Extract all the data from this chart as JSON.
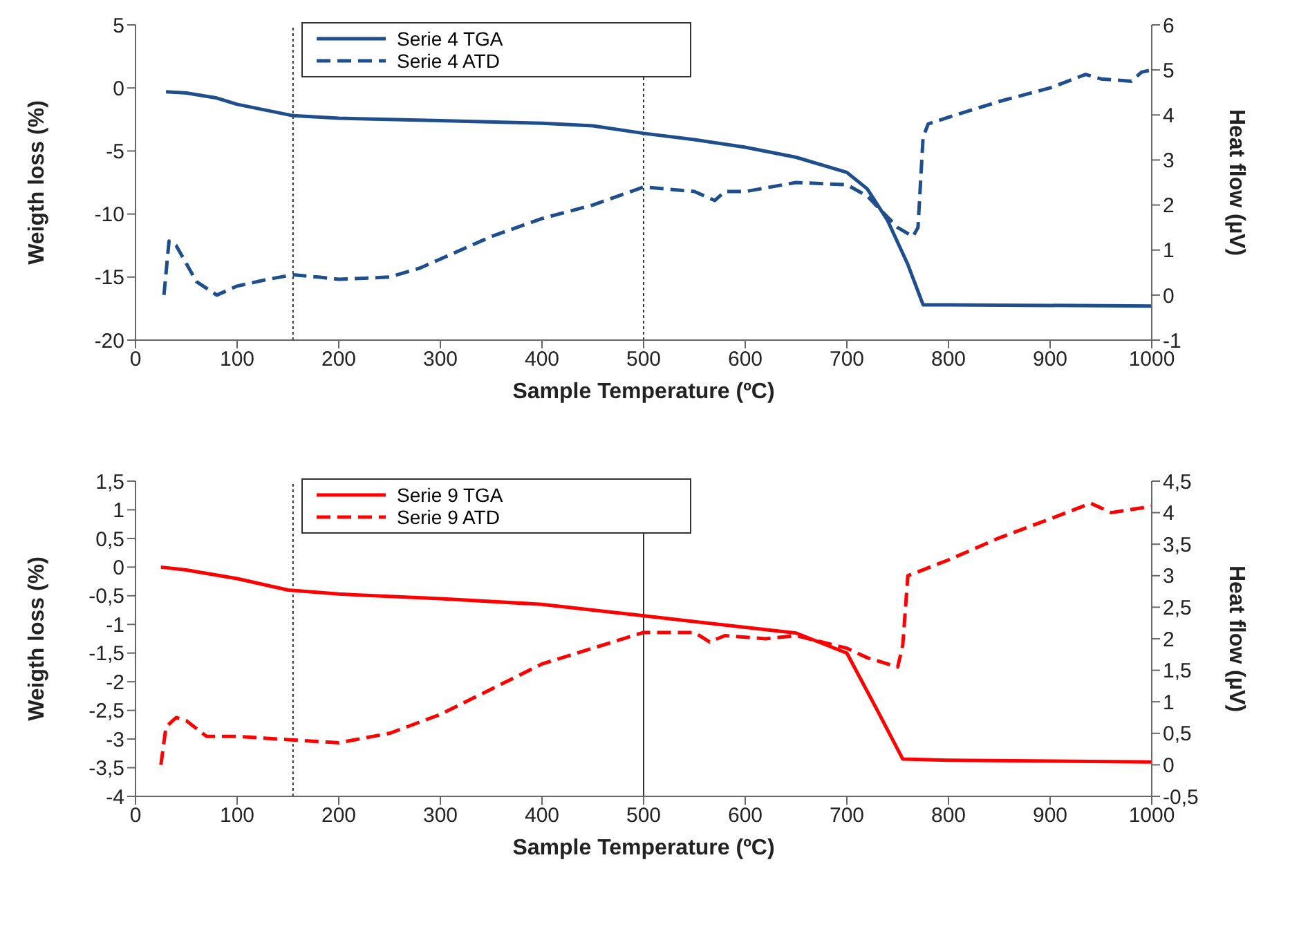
{
  "chart_data": [
    {
      "type": "line",
      "xlabel": "Sample Temperature (ºC)",
      "ylabel": "Weigth loss (%)",
      "y2label": "Heat flow (µV)",
      "xlim": [
        0,
        1000
      ],
      "xticks": [
        0,
        100,
        200,
        300,
        400,
        500,
        600,
        700,
        800,
        900,
        1000
      ],
      "ylim": [
        -20,
        5
      ],
      "yticks": [
        -20,
        -15,
        -10,
        -5,
        0,
        5
      ],
      "y2lim": [
        -1,
        6
      ],
      "y2ticks": [
        -1,
        0,
        1,
        2,
        3,
        4,
        5,
        6
      ],
      "legend": "top",
      "series": [
        {
          "name": "Serie 4 TGA",
          "color": "#1f4e8c",
          "line_style": "solid",
          "x": [
            30,
            50,
            80,
            100,
            155,
            200,
            300,
            400,
            450,
            500,
            550,
            600,
            650,
            700,
            720,
            740,
            760,
            775,
            800,
            1000
          ],
          "values": [
            -0.3,
            -0.4,
            -0.8,
            -1.3,
            -2.2,
            -2.4,
            -2.6,
            -2.8,
            -3.0,
            -3.6,
            -4.1,
            -4.7,
            -5.5,
            -6.7,
            -8,
            -10.5,
            -14,
            -17.2,
            -17.2,
            -17.3
          ]
        },
        {
          "name": "Serie 4 ATD",
          "color": "#1f4e8c",
          "line_style": "dashed",
          "axis": "y2",
          "x": [
            28,
            33,
            40,
            50,
            60,
            80,
            100,
            130,
            155,
            180,
            200,
            250,
            280,
            300,
            350,
            400,
            450,
            500,
            550,
            570,
            580,
            600,
            650,
            700,
            720,
            750,
            765,
            770,
            775,
            780,
            800,
            850,
            900,
            935,
            950,
            980,
            990,
            1000
          ],
          "values": [
            0,
            1.2,
            1.1,
            0.7,
            0.3,
            0,
            0.2,
            0.35,
            0.45,
            0.4,
            0.35,
            0.4,
            0.6,
            0.8,
            1.3,
            1.7,
            2.0,
            2.4,
            2.3,
            2.1,
            2.3,
            2.3,
            2.5,
            2.45,
            2.2,
            1.5,
            1.3,
            1.5,
            3.5,
            3.8,
            3.95,
            4.3,
            4.6,
            4.9,
            4.8,
            4.75,
            4.95,
            5.0
          ]
        }
      ],
      "ref_lines": [
        {
          "axis": "x",
          "value": 155,
          "line_style": "dotted"
        },
        {
          "axis": "x",
          "value": 500,
          "line_style": "dotted"
        }
      ]
    },
    {
      "type": "line",
      "xlabel": "Sample Temperature (ºC)",
      "ylabel": "Weigth loss (%)",
      "y2label": "Heat flow (µV)",
      "xlim": [
        0,
        1000
      ],
      "xticks": [
        0,
        100,
        200,
        300,
        400,
        500,
        600,
        700,
        800,
        900,
        1000
      ],
      "ylim": [
        -4,
        1.5
      ],
      "yticks": [
        -4,
        {
          "value": -3.5,
          "label": "-3,5"
        },
        -3,
        {
          "value": -2.5,
          "label": "-2,5"
        },
        -2,
        {
          "value": -1.5,
          "label": "-1,5"
        },
        -1,
        {
          "value": -0.5,
          "label": "-0,5"
        },
        0,
        {
          "value": 0.5,
          "label": "0,5"
        },
        1,
        {
          "value": 1.5,
          "label": "1,5"
        }
      ],
      "y2lim": [
        -0.5,
        4.5
      ],
      "y2ticks": [
        {
          "value": -0.5,
          "label": "-0,5"
        },
        0,
        {
          "value": 0.5,
          "label": "0,5"
        },
        1,
        {
          "value": 1.5,
          "label": "1,5"
        },
        2,
        {
          "value": 2.5,
          "label": "2,5"
        },
        3,
        {
          "value": 3.5,
          "label": "3,5"
        },
        4,
        {
          "value": 4.5,
          "label": "4,5"
        }
      ],
      "legend": "top",
      "series": [
        {
          "name": "Serie 9 TGA",
          "color": "#ff0000",
          "line_style": "solid",
          "x": [
            25,
            50,
            100,
            150,
            200,
            300,
            400,
            500,
            600,
            650,
            700,
            730,
            755,
            800,
            1000
          ],
          "values": [
            0,
            -0.05,
            -0.2,
            -0.4,
            -0.47,
            -0.55,
            -0.65,
            -0.85,
            -1.05,
            -1.15,
            -1.5,
            -2.5,
            -3.35,
            -3.37,
            -3.4
          ]
        },
        {
          "name": "Serie 9 ATD",
          "color": "#ff0000",
          "line_style": "dashed",
          "axis": "y2",
          "x": [
            25,
            30,
            40,
            50,
            70,
            100,
            150,
            200,
            250,
            300,
            350,
            400,
            450,
            500,
            550,
            565,
            580,
            620,
            650,
            700,
            720,
            750,
            755,
            760,
            800,
            850,
            900,
            940,
            960,
            1000
          ],
          "values": [
            0,
            0.6,
            0.75,
            0.7,
            0.45,
            0.45,
            0.4,
            0.35,
            0.5,
            0.8,
            1.2,
            1.6,
            1.85,
            2.1,
            2.1,
            1.95,
            2.05,
            2.0,
            2.05,
            1.85,
            1.7,
            1.55,
            1.9,
            3.0,
            3.25,
            3.6,
            3.9,
            4.15,
            4.0,
            4.1
          ]
        }
      ],
      "ref_lines": [
        {
          "axis": "x",
          "value": 155,
          "line_style": "dotted"
        },
        {
          "axis": "x",
          "value": 500,
          "line_style": "solid"
        }
      ]
    }
  ]
}
